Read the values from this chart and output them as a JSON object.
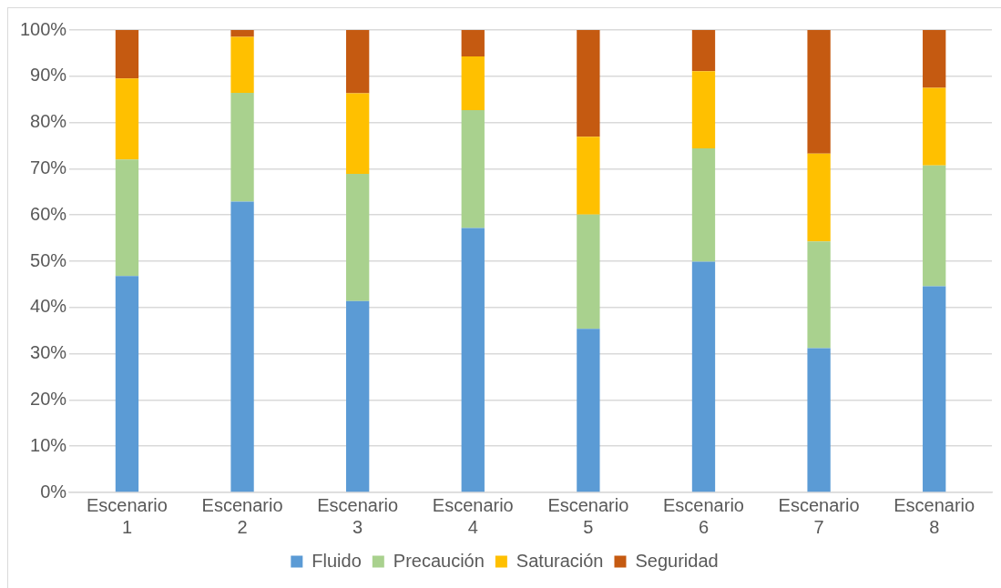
{
  "chart_data": {
    "type": "bar",
    "stacked": true,
    "categories": [
      "Escenario 1",
      "Escenario 2",
      "Escenario 3",
      "Escenario 4",
      "Escenario 5",
      "Escenario 6",
      "Escenario 7",
      "Escenario 8"
    ],
    "series": [
      {
        "name": "Fluido",
        "color": "#5b9bd5",
        "values": [
          46.8,
          62.9,
          41.4,
          57.2,
          35.4,
          49.9,
          31.2,
          44.6
        ]
      },
      {
        "name": "Precaución",
        "color": "#a9d18e",
        "values": [
          25.2,
          23.5,
          27.5,
          25.5,
          24.7,
          24.5,
          23.1,
          26.1
        ]
      },
      {
        "name": "Saturación",
        "color": "#ffc000",
        "values": [
          17.5,
          12.1,
          17.4,
          11.6,
          16.8,
          16.7,
          19.0,
          16.8
        ]
      },
      {
        "name": "Seguridad",
        "color": "#c55a11",
        "values": [
          10.5,
          1.5,
          13.7,
          5.7,
          23.1,
          8.9,
          26.7,
          12.5
        ]
      }
    ],
    "ylim": [
      0,
      100
    ],
    "yticks": [
      {
        "value": 0,
        "label": "0%"
      },
      {
        "value": 10,
        "label": "10%"
      },
      {
        "value": 20,
        "label": "20%"
      },
      {
        "value": 30,
        "label": "30%"
      },
      {
        "value": 40,
        "label": "40%"
      },
      {
        "value": 50,
        "label": "50%"
      },
      {
        "value": 60,
        "label": "60%"
      },
      {
        "value": 70,
        "label": "70%"
      },
      {
        "value": 80,
        "label": "80%"
      },
      {
        "value": 90,
        "label": "90%"
      },
      {
        "value": 100,
        "label": "100%"
      }
    ],
    "grid": "y",
    "legend": "bottom"
  }
}
